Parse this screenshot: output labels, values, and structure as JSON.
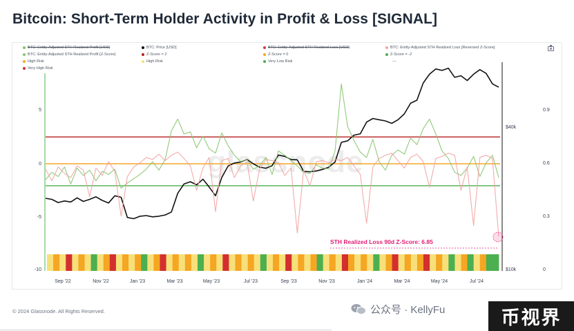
{
  "title": "Bitcoin: Short-Term Holder Activity in Profit & Loss [SIGNAL]",
  "footer": "© 2024 Glassnode. All Rights Reserved.",
  "watermark": "glassnode",
  "wechat_text": "公众号 · KellyFu",
  "brand_badge": "币视界",
  "annotation": "STH Realized Loss 90d Z-Score: 6.85",
  "legend": [
    {
      "label": "BTC: Entity-Adjusted STH Realized Profit [USD]",
      "color": "#86c36b",
      "struck": true
    },
    {
      "label": "BTC: Price [USD]",
      "color": "#111111",
      "struck": false
    },
    {
      "label": "BTC: Entity-Adjusted STH Realized Loss [USD]",
      "color": "#d93b3b",
      "struck": true
    },
    {
      "label": "BTC: Entity-Adjusted STH Realized Loss [Reversed Z-Score]",
      "color": "#f2a2a2",
      "struck": false
    },
    {
      "label": "BTC: Entity-Adjusted STH Realized Profit [Z-Score]",
      "color": "#86c36b",
      "struck": false
    },
    {
      "label": "Z-Score = 2",
      "color": "#b71c1c",
      "struck": false
    },
    {
      "label": "Z-Score = 0",
      "color": "#f5a623",
      "struck": false
    },
    {
      "label": "Z-Score = -2",
      "color": "#4caf50",
      "struck": false
    },
    {
      "label": "High Risk",
      "color": "#f5a623",
      "struck": false
    },
    {
      "label": "High Risk",
      "color": "#f7e07a",
      "struck": false
    },
    {
      "label": "Very Low Risk",
      "color": "#4caf50",
      "struck": false
    },
    {
      "label": "---",
      "color": "#9ca3af",
      "struck": false
    },
    {
      "label": "Very High Risk",
      "color": "#d32f2f",
      "struck": false
    }
  ],
  "chart_data": {
    "type": "line",
    "x_ticks": [
      "Sep '22",
      "Nov '22",
      "Jan '23",
      "Mar '23",
      "May '23",
      "Jul '23",
      "Sep '23",
      "Nov '23",
      "Jan '24",
      "Mar '24",
      "May '24",
      "Jul '24"
    ],
    "y_left_ticks": [
      "5",
      "0",
      "-5",
      "-10"
    ],
    "y_right_price_ticks": [
      "$40k",
      "$10k"
    ],
    "y_right_ratio_ticks": [
      "0.9",
      "0.6",
      "0.3",
      "0"
    ],
    "y_left_range": [
      -10,
      10
    ],
    "lines": {
      "z2": 2,
      "z0": 0,
      "zneg2": -2
    },
    "series": [
      {
        "name": "BTC: Price [USD]",
        "color": "#111111",
        "x_start": 0,
        "values": [
          20000,
          19800,
          19200,
          19500,
          19300,
          20100,
          19400,
          19800,
          20300,
          19600,
          19100,
          20500,
          20200,
          16600,
          16400,
          16800,
          16900,
          16700,
          16800,
          17000,
          17500,
          21000,
          23000,
          23500,
          22800,
          24100,
          22300,
          20500,
          24500,
          27400,
          28200,
          28500,
          29200,
          28000,
          27100,
          26800,
          27500,
          30500,
          30100,
          29200,
          29100,
          26000,
          25900,
          26100,
          26500,
          27100,
          28500,
          34500,
          35000,
          37000,
          37500,
          42000,
          43500,
          43000,
          42500,
          41500,
          43000,
          45500,
          50500,
          52000,
          61500,
          67000,
          70500,
          69500,
          71000,
          65000,
          66000,
          63000,
          67000,
          70000,
          67500,
          61000,
          59000
        ]
      },
      {
        "name": "BTC: Entity-Adjusted STH Realized Profit [Z-Score]",
        "color": "#86c36b",
        "x_start": 0,
        "values": [
          -1.5,
          -0.8,
          -1.2,
          -0.3,
          -1.9,
          -0.4,
          -1.1,
          -0.6,
          -1.6,
          -0.7,
          -1.0,
          -0.5,
          -2.3,
          -1.8,
          -1.4,
          -1.0,
          -0.5,
          0.2,
          -0.6,
          0.4,
          3.1,
          4.2,
          2.8,
          3.0,
          1.5,
          2.6,
          1.4,
          1.0,
          2.9,
          1.7,
          0.8,
          0.2,
          0.4,
          -0.5,
          -0.2,
          0.6,
          -1.0,
          1.2,
          0.8,
          0.3,
          -0.2,
          -0.8,
          -0.9,
          -0.1,
          -0.4,
          -0.5,
          1.2,
          7.5,
          3.5,
          2.2,
          1.1,
          0.6,
          2.3,
          0.2,
          -0.6,
          0.8,
          1.3,
          0.9,
          2.4,
          1.8,
          3.3,
          4.2,
          2.8,
          1.2,
          0.5,
          -0.8,
          -1.1,
          -0.4,
          0.7,
          -1.2,
          0.1,
          0.8,
          -1.3
        ]
      },
      {
        "name": "BTC: Entity-Adjusted STH Realized Loss [Reversed Z-Score]",
        "color": "#f2a2a2",
        "x_start": 0,
        "values": [
          -0.5,
          -1.6,
          -0.3,
          -0.9,
          -1.3,
          -0.2,
          -0.6,
          -3.1,
          -0.4,
          -1.1,
          0.2,
          -0.7,
          -4.9,
          -1.2,
          -0.3,
          0.1,
          0.6,
          0.4,
          0.9,
          0.3,
          0.8,
          1.1,
          0.5,
          -0.2,
          -2.5,
          -0.4,
          0.6,
          -4.5,
          0.3,
          0.5,
          -1.3,
          -0.2,
          0.2,
          -3.5,
          -0.5,
          0.4,
          0.3,
          0.1,
          -1.1,
          -0.4,
          -6.5,
          -0.6,
          -2.1,
          0.2,
          0.3,
          0.1,
          0.4,
          0.3,
          0.6,
          -0.2,
          -1.0,
          -5.6,
          -0.3,
          0.5,
          0.8,
          1.0,
          0.3,
          -0.4,
          0.6,
          0.9,
          0.2,
          -2.2,
          0.5,
          0.7,
          1.0,
          0.8,
          -2.5,
          -0.3,
          -5.8,
          0.6,
          0.8,
          0.5,
          -6.85
        ]
      }
    ],
    "risk_band_colors": [
      "#f7e07a",
      "#f5a623",
      "#f7e07a",
      "#d32f2f",
      "#f7e07a",
      "#f5a623",
      "#f7e07a",
      "#4caf50",
      "#f7e07a",
      "#f5a623",
      "#d32f2f",
      "#f7e07a",
      "#f5a623",
      "#f7e07a",
      "#f5a623",
      "#4caf50",
      "#f7e07a",
      "#f5a623",
      "#d32f2f",
      "#f7e07a",
      "#f5a623",
      "#f7e07a",
      "#f5a623",
      "#f7e07a",
      "#4caf50",
      "#f7e07a",
      "#f5a623",
      "#f7e07a",
      "#d32f2f",
      "#f7e07a",
      "#f5a623",
      "#f7e07a",
      "#f5a623",
      "#f7e07a",
      "#4caf50",
      "#f7e07a",
      "#f5a623",
      "#f7e07a",
      "#d32f2f",
      "#f7e07a",
      "#f5a623",
      "#f7e07a",
      "#f5a623",
      "#4caf50",
      "#f7e07a",
      "#f5a623",
      "#f7e07a",
      "#d32f2f",
      "#f5a623",
      "#f7e07a",
      "#f5a623",
      "#f7e07a",
      "#4caf50",
      "#f7e07a",
      "#f5a623",
      "#d32f2f",
      "#f7e07a",
      "#f5a623",
      "#f7e07a",
      "#f5a623",
      "#d32f2f",
      "#f7e07a",
      "#f5a623",
      "#f7e07a",
      "#4caf50",
      "#f7e07a",
      "#f5a623",
      "#4caf50",
      "#f7e07a",
      "#f5a623",
      "#4caf50",
      "#4caf50"
    ]
  }
}
